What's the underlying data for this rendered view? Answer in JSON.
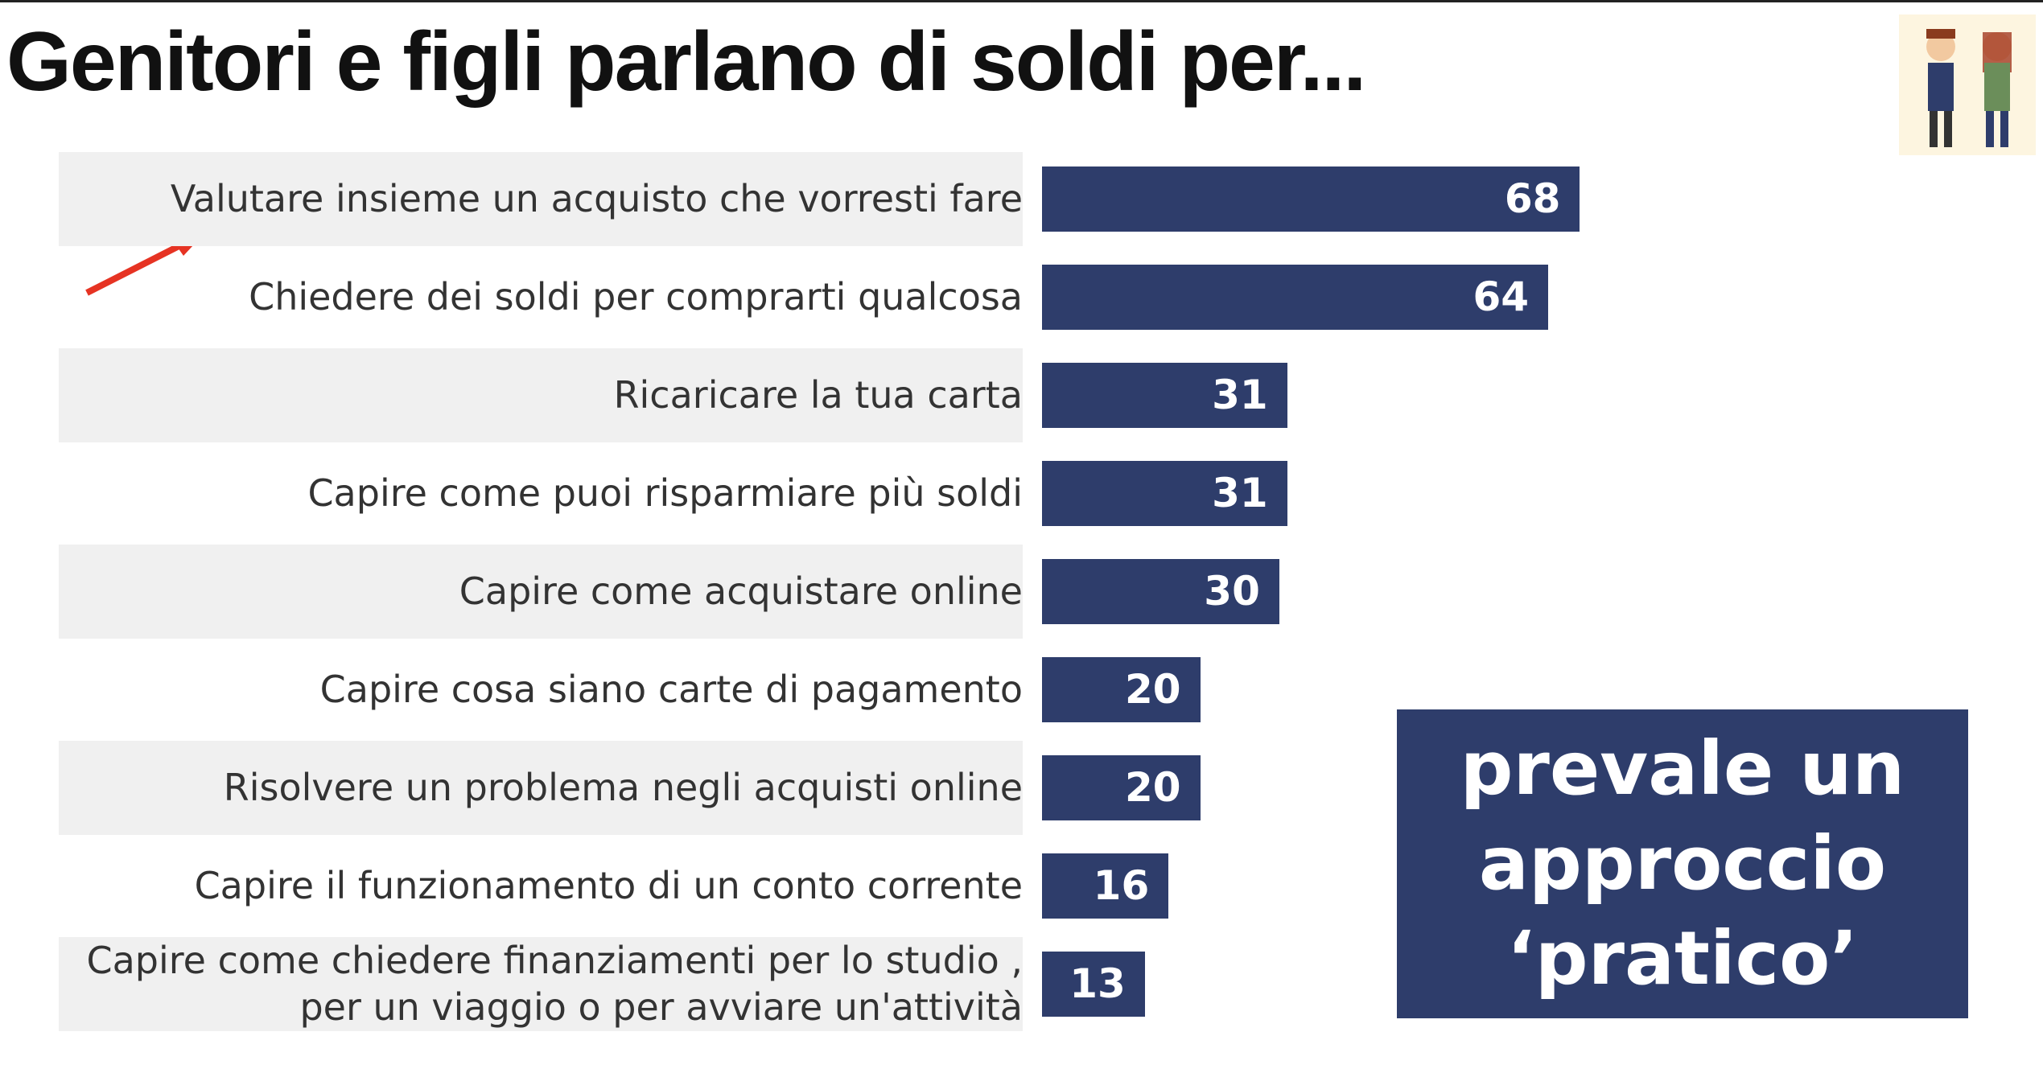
{
  "chart_data": {
    "type": "bar",
    "orientation": "horizontal",
    "title": "Genitori e figli parlano di soldi per...",
    "categories": [
      "Valutare insieme un acquisto che vorresti fare",
      "Chiedere dei soldi per comprarti qualcosa",
      "Ricaricare la tua carta",
      "Capire come puoi risparmiare più soldi",
      "Capire come acquistare online",
      "Capire cosa siano carte di pagamento",
      "Risolvere un problema negli acquisti online",
      "Capire il funzionamento di un conto corrente",
      "Capire come chiedere finanziamenti per lo studio ,\nper un viaggio o per avviare un'attività"
    ],
    "values": [
      68,
      64,
      31,
      31,
      30,
      20,
      20,
      16,
      13
    ],
    "color": "#2e3d6b",
    "annotation": [
      "prevale un",
      "approccio",
      "‘pratico’"
    ]
  }
}
